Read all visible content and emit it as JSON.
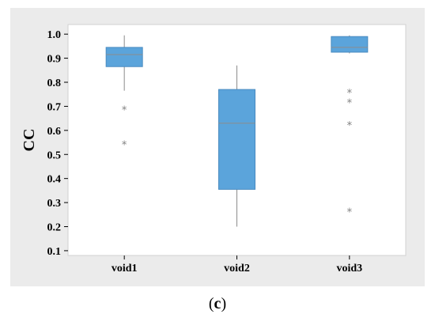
{
  "caption": {
    "open": "(",
    "letter": "c",
    "close": ")"
  },
  "chart_data": {
    "type": "boxplot",
    "ylabel": "CC",
    "xlabel": "",
    "ylim": [
      0.08,
      1.04
    ],
    "yticks": [
      0.1,
      0.2,
      0.3,
      0.4,
      0.5,
      0.6,
      0.7,
      0.8,
      0.9,
      1.0
    ],
    "ytick_labels": [
      "0.1",
      "0.2",
      "0.3",
      "0.4",
      "0.5",
      "0.6",
      "0.7",
      "0.8",
      "0.9",
      "1.0"
    ],
    "categories": [
      "void1",
      "void2",
      "void3"
    ],
    "boxes": [
      {
        "category": "void1",
        "whisker_low": 0.765,
        "q1": 0.865,
        "median": 0.915,
        "q3": 0.945,
        "whisker_high": 0.995,
        "outliers": [
          0.69,
          0.545
        ]
      },
      {
        "category": "void2",
        "whisker_low": 0.2,
        "q1": 0.355,
        "median": 0.63,
        "q3": 0.77,
        "whisker_high": 0.87,
        "outliers": []
      },
      {
        "category": "void3",
        "whisker_low": 0.92,
        "q1": 0.925,
        "median": 0.945,
        "q3": 0.99,
        "whisker_high": 0.995,
        "outliers": [
          0.76,
          0.72,
          0.625,
          0.265
        ]
      }
    ],
    "grid": false,
    "legend": "none",
    "colors": {
      "box_fill": "#5BA4DB",
      "box_edge": "#4A8BC0",
      "line": "#8C8C8C",
      "frame_bg": "#EBEBEB",
      "plot_bg": "#FFFFFF",
      "plot_border": "#D0D0D0"
    }
  }
}
